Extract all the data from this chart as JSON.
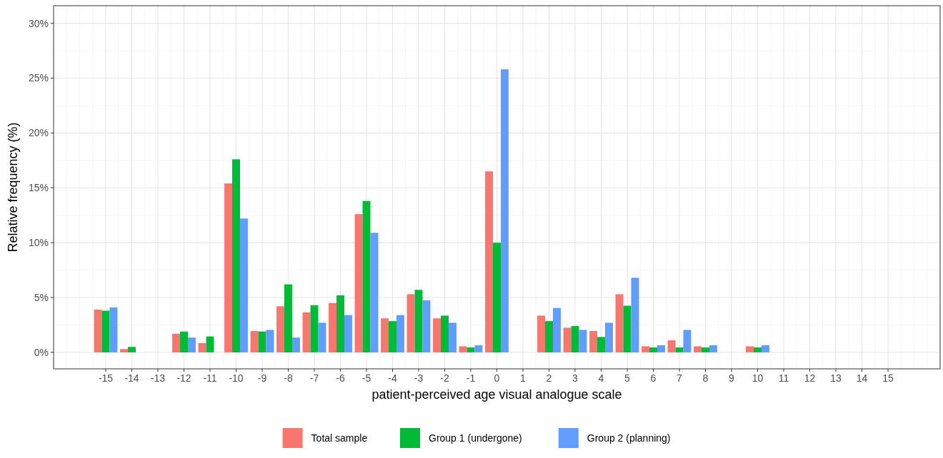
{
  "chart_data": {
    "type": "bar",
    "xlabel": "patient-perceived age visual analogue scale",
    "ylabel": "Relative frequency (%)",
    "x": [
      -15,
      -14,
      -13,
      -12,
      -11,
      -10,
      -9,
      -8,
      -7,
      -6,
      -5,
      -4,
      -3,
      -2,
      -1,
      0,
      1,
      2,
      3,
      4,
      5,
      6,
      7,
      8,
      9,
      10,
      11,
      12,
      13,
      14,
      15
    ],
    "series": [
      {
        "name": "Total sample",
        "color": "#f8766d",
        "values": [
          3.9,
          0.3,
          0,
          1.7,
          0.85,
          15.4,
          1.95,
          4.2,
          3.65,
          4.5,
          12.6,
          3.1,
          5.3,
          3.1,
          0.55,
          16.5,
          0,
          3.35,
          2.25,
          1.95,
          5.3,
          0.55,
          1.1,
          0.55,
          0,
          0.55,
          0,
          0,
          0,
          0,
          0
        ]
      },
      {
        "name": "Group 1 (undergone)",
        "color": "#00ba38",
        "values": [
          3.8,
          0.5,
          0,
          1.9,
          1.45,
          17.6,
          1.9,
          6.2,
          4.3,
          5.2,
          13.8,
          2.85,
          5.7,
          3.35,
          0.45,
          10.0,
          0,
          2.85,
          2.4,
          1.4,
          4.25,
          0.45,
          0.45,
          0.45,
          0,
          0.45,
          0,
          0,
          0,
          0,
          0
        ]
      },
      {
        "name": "Group 2 (planning)",
        "color": "#619cff",
        "values": [
          4.1,
          0,
          0,
          1.35,
          0,
          12.2,
          2.05,
          1.35,
          2.7,
          3.4,
          10.9,
          3.4,
          4.75,
          2.7,
          0.65,
          25.8,
          0,
          4.05,
          2.05,
          2.7,
          6.8,
          0.65,
          2.05,
          0.65,
          0,
          0.65,
          0,
          0,
          0,
          0,
          0
        ]
      }
    ],
    "xlim": [
      -17,
      17
    ],
    "xticks": [
      -15,
      -14,
      -13,
      -12,
      -11,
      -10,
      -9,
      -8,
      -7,
      -6,
      -5,
      -4,
      -3,
      -2,
      -1,
      0,
      1,
      2,
      3,
      4,
      5,
      6,
      7,
      8,
      9,
      10,
      11,
      12,
      13,
      14,
      15
    ],
    "ylim": [
      -1.5,
      31.6
    ],
    "yticks": [
      {
        "value": 0,
        "label": "0%"
      },
      {
        "value": 5,
        "label": "5%"
      },
      {
        "value": 10,
        "label": "10%"
      },
      {
        "value": 15,
        "label": "15%"
      },
      {
        "value": 20,
        "label": "20%"
      },
      {
        "value": 25,
        "label": "25%"
      },
      {
        "value": 30,
        "label": "30%"
      }
    ],
    "grid": true,
    "legend": "bottom"
  }
}
